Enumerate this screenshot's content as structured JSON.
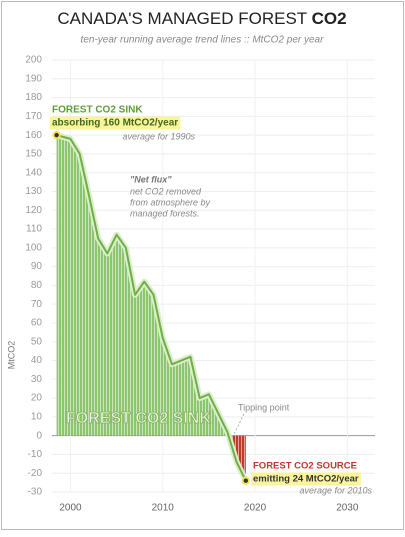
{
  "chart_data": {
    "type": "area",
    "title": "CANADA'S MANAGED FOREST",
    "title_emphasis": "CO2",
    "subtitle": "ten-year running average trend lines :: MtCO2 per year",
    "y_label": "MtCO2",
    "x": [
      1998.5,
      2000,
      2001,
      2002,
      2003,
      2004,
      2005,
      2006,
      2007,
      2008,
      2009,
      2010,
      2011,
      2012,
      2013,
      2014,
      2015,
      2016,
      2017,
      2018,
      2019
    ],
    "values": [
      160,
      158,
      150,
      128,
      105,
      97,
      107,
      100,
      75,
      82,
      75,
      52,
      38,
      40,
      42,
      20,
      22,
      12,
      2,
      -14,
      -24
    ],
    "colors": {
      "positive": "#8cc56e",
      "negative": "#c0392b",
      "line": "#6fae4a"
    },
    "xlim": [
      1998,
      2033
    ],
    "xticks": [
      2000,
      2010,
      2020,
      2030
    ],
    "ylim": [
      -30,
      200
    ],
    "yticks": [
      200,
      190,
      180,
      170,
      160,
      150,
      140,
      130,
      120,
      110,
      100,
      90,
      80,
      70,
      60,
      50,
      40,
      30,
      20,
      10,
      0,
      -10,
      -20,
      -30
    ],
    "grid": true,
    "annotations": {
      "sink_heading": "FOREST CO2 SINK",
      "sink_value": "absorbing 160 MtCO2/year",
      "sink_note": "average for 1990s",
      "flux_heading": "\"Net flux\"",
      "flux_lines": [
        "net CO2 removed",
        "from atmosphere by",
        "managed forests."
      ],
      "sink_label": "FOREST CO2 SINK",
      "tipping": "Tipping point",
      "source_heading": "FOREST CO2 SOURCE",
      "source_value": "emitting 24 MtCO2/year",
      "source_note": "average for 2010s"
    }
  }
}
